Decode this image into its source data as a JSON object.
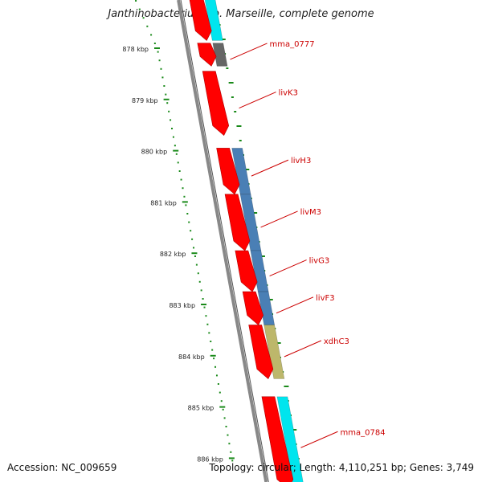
{
  "title": "Janthinobacterium sp. Marseille, complete genome",
  "accession": "Accession: NC_009659",
  "topology": "Topology: circular; Length: 4,110,251 bp; Genes: 3,749",
  "ruler": [
    {
      "label": "878 kbp",
      "kb": 878
    },
    {
      "label": "879 kbp",
      "kb": 879
    },
    {
      "label": "880 kbp",
      "kb": 880
    },
    {
      "label": "881 kbp",
      "kb": 881
    },
    {
      "label": "882 kbp",
      "kb": 882
    },
    {
      "label": "883 kbp",
      "kb": 883
    },
    {
      "label": "884 kbp",
      "kb": 884
    },
    {
      "label": "885 kbp",
      "kb": 885
    },
    {
      "label": "886 kbp",
      "kb": 886
    }
  ],
  "genes": [
    {
      "name": "mma_0777",
      "start": 877.9,
      "end": 878.35,
      "category": "gray"
    },
    {
      "name": "livK3",
      "start": 878.45,
      "end": 879.7,
      "category": "none"
    },
    {
      "name": "livH3",
      "start": 879.95,
      "end": 880.85,
      "category": "blue"
    },
    {
      "name": "livM3",
      "start": 880.85,
      "end": 881.95,
      "category": "blue"
    },
    {
      "name": "livG3",
      "start": 881.95,
      "end": 882.75,
      "category": "blue"
    },
    {
      "name": "livF3",
      "start": 882.75,
      "end": 883.4,
      "category": "blue"
    },
    {
      "name": "xdhC3",
      "start": 883.4,
      "end": 884.45,
      "category": "olive"
    },
    {
      "name": "mma_0784",
      "start": 884.8,
      "end": 886.6,
      "category": "cyan"
    }
  ],
  "top_partial_gene": {
    "start": 877.3,
    "end": 877.85,
    "category": "cyan"
  },
  "colors": {
    "cds": "#ff0000",
    "label": "#cc0000",
    "gray": "#666666",
    "blue": "#4a7fb5",
    "olive": "#bdb76b",
    "cyan": "#00e5ee",
    "backbone": "#888888",
    "gc_ticks": "#1a8a1a",
    "ruler_ticks": "#1a8a1a"
  }
}
